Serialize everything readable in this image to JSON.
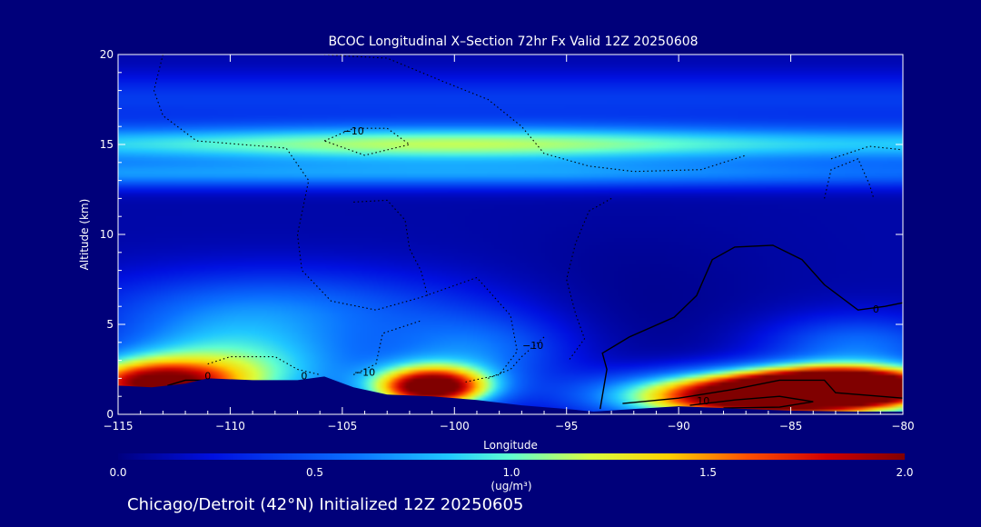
{
  "chart_data": {
    "type": "heatmap",
    "title": "BCOC Longitudinal X–Section 72hr  Fx Valid 12Z 20250608",
    "xlabel": "Longitude",
    "ylabel": "Altitude (km)",
    "xlim": [
      -115,
      -80
    ],
    "ylim": [
      0,
      20
    ],
    "x_ticks": [
      "−115",
      "−110",
      "−105",
      "−100",
      "−95",
      "−90",
      "−85",
      "−80"
    ],
    "x_tick_values": [
      -115,
      -110,
      -105,
      -100,
      -95,
      -90,
      -85,
      -80
    ],
    "y_ticks": [
      "0",
      "5",
      "10",
      "15",
      "20"
    ],
    "y_tick_values": [
      0,
      5,
      10,
      15,
      20
    ],
    "colorbar": {
      "label": "(ug/m³)",
      "min": 0.0,
      "max": 2.0,
      "tick_values": [
        0.0,
        0.5,
        1.0,
        1.5,
        2.0
      ],
      "tick_labels": [
        "0.0",
        "0.5",
        "1.0",
        "1.5",
        "2.0"
      ]
    },
    "background_concentration": 0.1,
    "bands": [
      {
        "name": "upper-band",
        "altitude_km": 15.0,
        "peak_value": 1.05
      },
      {
        "name": "lower-band",
        "altitude_km": 13.3,
        "peak_value": 0.55
      }
    ],
    "plumes": [
      {
        "name": "west-surface",
        "lon": -113.5,
        "alt": 1.7,
        "value": 1.5
      },
      {
        "name": "west-low",
        "lon": -110.0,
        "alt": 2.5,
        "value": 0.9
      },
      {
        "name": "central-plume",
        "lon": -101.0,
        "alt": 1.5,
        "value": 2.0
      },
      {
        "name": "east-surface",
        "lon": -86.0,
        "alt": 1.0,
        "value": 2.3
      },
      {
        "name": "east-far",
        "lon": -82.5,
        "alt": 1.6,
        "value": 2.1
      }
    ],
    "contour_labels": [
      {
        "text": "−10",
        "lon": -104.5,
        "alt": 15.7
      },
      {
        "text": "0",
        "lon": -111.0,
        "alt": 2.1
      },
      {
        "text": "0",
        "lon": -106.7,
        "alt": 2.1
      },
      {
        "text": "−10",
        "lon": -104.0,
        "alt": 2.3
      },
      {
        "text": "−10",
        "lon": -96.5,
        "alt": 3.8
      },
      {
        "text": "0",
        "lon": -81.2,
        "alt": 5.8
      },
      {
        "text": "10",
        "lon": -88.9,
        "alt": 0.7
      }
    ],
    "terrain": [
      [
        -115,
        1.6
      ],
      [
        -113.5,
        1.5
      ],
      [
        -112,
        1.7
      ],
      [
        -111,
        2.0
      ],
      [
        -109,
        1.9
      ],
      [
        -107,
        1.9
      ],
      [
        -105.8,
        2.1
      ],
      [
        -104.5,
        1.5
      ],
      [
        -103,
        1.1
      ],
      [
        -101,
        1.0
      ],
      [
        -99,
        0.8
      ],
      [
        -97,
        0.5
      ],
      [
        -95,
        0.3
      ],
      [
        -93.8,
        0.15
      ],
      [
        -92,
        0.3
      ],
      [
        -90,
        0.45
      ],
      [
        -88,
        0.35
      ],
      [
        -85,
        0.2
      ],
      [
        -82,
        0.15
      ],
      [
        -80,
        0.15
      ]
    ],
    "footnote": "Chicago/Detroit (42°N) Initialized 12Z 20250605"
  }
}
